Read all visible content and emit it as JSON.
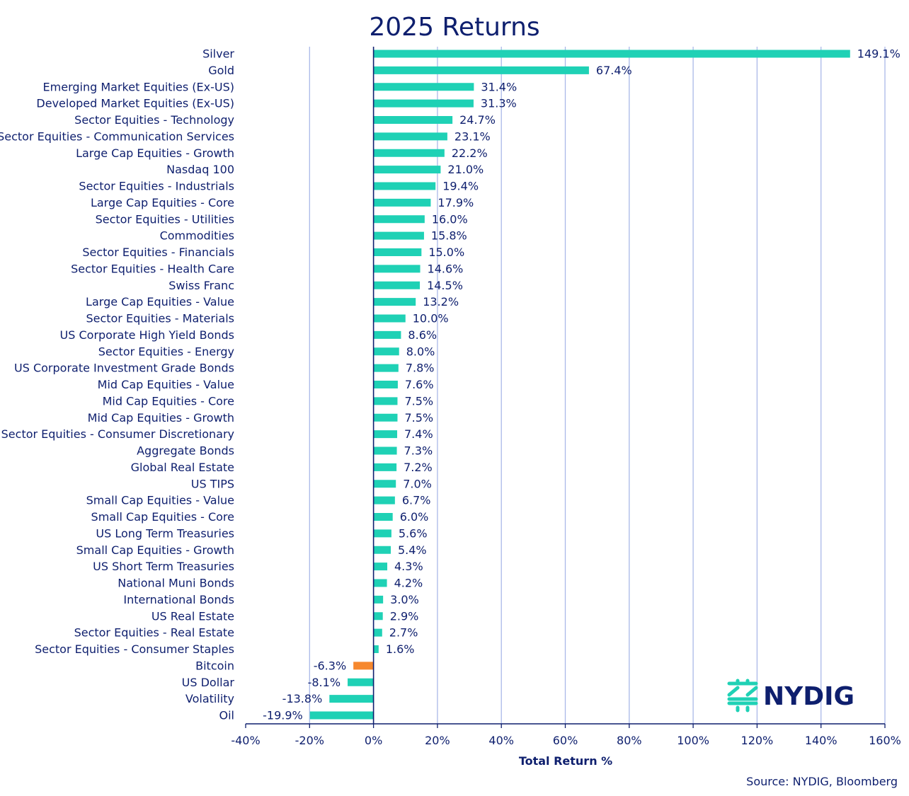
{
  "chart_data": {
    "type": "bar",
    "orientation": "horizontal",
    "title": "2025 Returns",
    "xlabel": "Total Return %",
    "ylabel": "",
    "xlim": [
      -40,
      160
    ],
    "xticks": [
      "-40%",
      "-20%",
      "0%",
      "20%",
      "40%",
      "60%",
      "80%",
      "100%",
      "120%",
      "140%",
      "160%"
    ],
    "grid": "vertical",
    "categories": [
      "Silver",
      "Gold",
      "Emerging Market Equities (Ex-US)",
      "Developed Market Equities (Ex-US)",
      "Sector Equities - Technology",
      "Sector Equities - Communication Services",
      "Large Cap Equities - Growth",
      "Nasdaq 100",
      "Sector Equities - Industrials",
      "Large Cap Equities - Core",
      "Sector Equities - Utilities",
      "Commodities",
      "Sector Equities - Financials",
      "Sector Equities - Health Care",
      "Swiss Franc",
      "Large Cap Equities - Value",
      "Sector Equities - Materials",
      "US Corporate High Yield Bonds",
      "Sector Equities - Energy",
      "US Corporate Investment Grade Bonds",
      "Mid Cap Equities - Value",
      "Mid Cap Equities - Core",
      "Mid Cap Equities - Growth",
      "Sector Equities - Consumer Discretionary",
      "Aggregate Bonds",
      "Global Real Estate",
      "US TIPS",
      "Small Cap Equities - Value",
      "Small Cap Equities - Core",
      "US Long Term Treasuries",
      "Small Cap Equities - Growth",
      "US Short Term Treasuries",
      "National Muni Bonds",
      "International Bonds",
      "US Real Estate",
      "Sector Equities - Real Estate",
      "Sector Equities - Consumer Staples",
      "Bitcoin",
      "US Dollar",
      "Volatility",
      "Oil"
    ],
    "values": [
      149.1,
      67.4,
      31.4,
      31.3,
      24.7,
      23.1,
      22.2,
      21.0,
      19.4,
      17.9,
      16.0,
      15.8,
      15.0,
      14.6,
      14.5,
      13.2,
      10.0,
      8.6,
      8.0,
      7.8,
      7.6,
      7.5,
      7.5,
      7.4,
      7.3,
      7.2,
      7.0,
      6.7,
      6.0,
      5.6,
      5.4,
      4.3,
      4.2,
      3.0,
      2.9,
      2.7,
      1.6,
      -6.3,
      -8.1,
      -13.8,
      -19.9
    ],
    "data_labels": [
      "149.1%",
      "67.4%",
      "31.4%",
      "31.3%",
      "24.7%",
      "23.1%",
      "22.2%",
      "21.0%",
      "19.4%",
      "17.9%",
      "16.0%",
      "15.8%",
      "15.0%",
      "14.6%",
      "14.5%",
      "13.2%",
      "10.0%",
      "8.6%",
      "8.0%",
      "7.8%",
      "7.6%",
      "7.5%",
      "7.5%",
      "7.4%",
      "7.3%",
      "7.2%",
      "7.0%",
      "6.7%",
      "6.0%",
      "5.6%",
      "5.4%",
      "4.3%",
      "4.2%",
      "3.0%",
      "2.9%",
      "2.7%",
      "1.6%",
      "-6.3%",
      "-8.1%",
      "-13.8%",
      "-19.9%"
    ],
    "highlight_category": "Bitcoin",
    "colors": {
      "bar": "#1fd1b5",
      "highlight": "#f6882e",
      "text": "#0e1f6e",
      "grid": "#aab8e8",
      "axis": "#0e1f6e"
    }
  },
  "logo": {
    "text": "NYDIG",
    "color": "#1fd1b5"
  },
  "source": "Source: NYDIG, Bloomberg"
}
